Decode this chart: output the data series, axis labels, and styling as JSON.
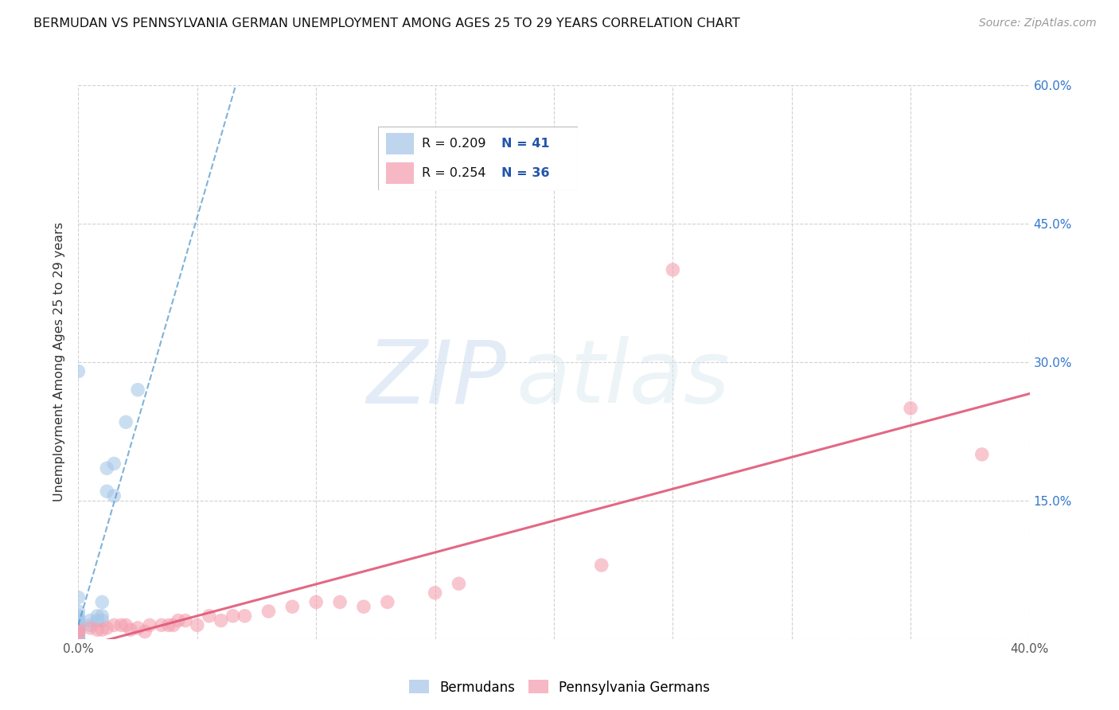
{
  "title": "BERMUDAN VS PENNSYLVANIA GERMAN UNEMPLOYMENT AMONG AGES 25 TO 29 YEARS CORRELATION CHART",
  "source": "Source: ZipAtlas.com",
  "ylabel": "Unemployment Among Ages 25 to 29 years",
  "xlim": [
    0.0,
    0.4
  ],
  "ylim": [
    0.0,
    0.6
  ],
  "xticks": [
    0.0,
    0.05,
    0.1,
    0.15,
    0.2,
    0.25,
    0.3,
    0.35,
    0.4
  ],
  "yticks": [
    0.0,
    0.15,
    0.3,
    0.45,
    0.6
  ],
  "yticklabels_right": [
    "",
    "15.0%",
    "30.0%",
    "45.0%",
    "60.0%"
  ],
  "legend_r1": "0.209",
  "legend_n1": "41",
  "legend_r2": "0.254",
  "legend_n2": "36",
  "blue_color": "#a8c8e8",
  "pink_color": "#f4a0b0",
  "blue_line_color": "#5599cc",
  "pink_line_color": "#e05878",
  "watermark_zip": "ZIP",
  "watermark_atlas": "atlas",
  "bermudans_x": [
    0.0,
    0.0,
    0.0,
    0.0,
    0.0,
    0.0,
    0.0,
    0.0,
    0.0,
    0.0,
    0.0,
    0.0,
    0.0,
    0.0,
    0.0,
    0.0,
    0.0,
    0.0,
    0.0,
    0.0,
    0.0,
    0.0,
    0.0,
    0.0,
    0.0,
    0.0,
    0.0,
    0.005,
    0.005,
    0.008,
    0.008,
    0.01,
    0.01,
    0.01,
    0.012,
    0.012,
    0.015,
    0.015,
    0.02,
    0.025,
    0.0
  ],
  "bermudans_y": [
    0.0,
    0.0,
    0.0,
    0.0,
    0.005,
    0.005,
    0.005,
    0.007,
    0.008,
    0.008,
    0.01,
    0.01,
    0.01,
    0.01,
    0.012,
    0.012,
    0.013,
    0.015,
    0.015,
    0.016,
    0.018,
    0.02,
    0.02,
    0.022,
    0.025,
    0.03,
    0.045,
    0.015,
    0.02,
    0.02,
    0.025,
    0.02,
    0.025,
    0.04,
    0.16,
    0.185,
    0.155,
    0.19,
    0.235,
    0.27,
    0.29
  ],
  "pa_german_x": [
    0.0,
    0.0,
    0.0,
    0.005,
    0.008,
    0.01,
    0.012,
    0.015,
    0.018,
    0.02,
    0.022,
    0.025,
    0.028,
    0.03,
    0.035,
    0.038,
    0.04,
    0.042,
    0.045,
    0.05,
    0.055,
    0.06,
    0.065,
    0.07,
    0.08,
    0.09,
    0.1,
    0.11,
    0.12,
    0.13,
    0.15,
    0.16,
    0.22,
    0.25,
    0.35,
    0.38
  ],
  "pa_german_y": [
    0.005,
    0.008,
    0.01,
    0.012,
    0.01,
    0.01,
    0.012,
    0.015,
    0.015,
    0.015,
    0.01,
    0.012,
    0.008,
    0.015,
    0.015,
    0.015,
    0.015,
    0.02,
    0.02,
    0.015,
    0.025,
    0.02,
    0.025,
    0.025,
    0.03,
    0.035,
    0.04,
    0.04,
    0.035,
    0.04,
    0.05,
    0.06,
    0.08,
    0.4,
    0.25,
    0.2
  ]
}
